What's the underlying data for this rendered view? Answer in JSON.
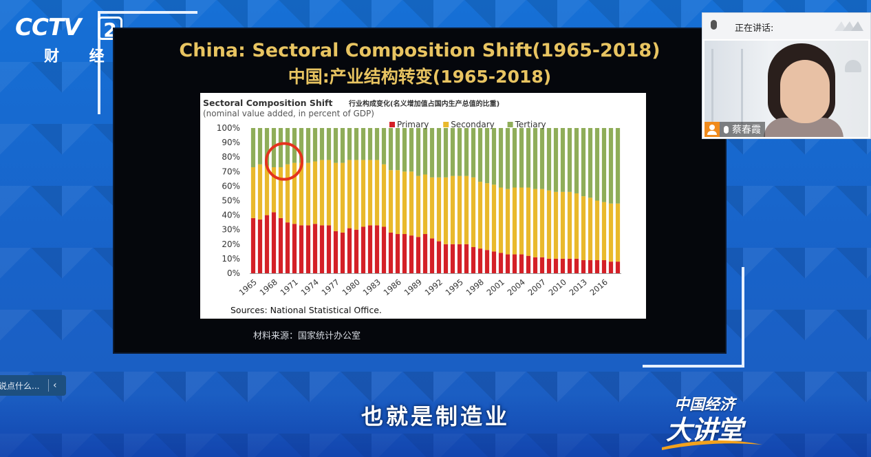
{
  "broadcast": {
    "channel_logo": "CCTV",
    "channel_number": "2",
    "channel_name": "财 经",
    "subtitle": "也就是制造业",
    "program_brand_top": "中国经济",
    "program_brand_bottom": "大讲堂"
  },
  "slide": {
    "title_en": "China: Sectoral Composition Shift(1965-2018)",
    "title_zh": "中国:产业结构转变(1965-2018)",
    "chart_title": "Sectoral Composition Shift",
    "chart_title_zh": "行业构成变化(名义增加值占国内生产总值的比重)",
    "chart_subtitle": "(nominal value added, in percent of GDP)",
    "source": "Sources: National Statistical Office.",
    "caption": "材料来源：国家统计办公室"
  },
  "webcam": {
    "status": "正在讲话:",
    "speaker_name": "蔡春霞",
    "icons": [
      "microphone-icon",
      "user-icon"
    ]
  },
  "comment_box": {
    "placeholder": "说点什么...",
    "collapse_icon": "chevron-left-icon"
  },
  "colors": {
    "primary": "#d42027",
    "secondary": "#e9b92c",
    "tertiary": "#8fad59",
    "slide_title": "#e8c461",
    "highlight_circle": "#e4331d"
  },
  "chart_data": {
    "type": "bar",
    "stacked": true,
    "x": [
      1965,
      1966,
      1967,
      1968,
      1969,
      1970,
      1971,
      1972,
      1973,
      1974,
      1975,
      1976,
      1977,
      1978,
      1979,
      1980,
      1981,
      1982,
      1983,
      1984,
      1985,
      1986,
      1987,
      1988,
      1989,
      1990,
      1991,
      1992,
      1993,
      1994,
      1995,
      1996,
      1997,
      1998,
      1999,
      2000,
      2001,
      2002,
      2003,
      2004,
      2005,
      2006,
      2007,
      2008,
      2009,
      2010,
      2011,
      2012,
      2013,
      2014,
      2015,
      2016,
      2017,
      2018
    ],
    "x_tick_labels": [
      "1965",
      "1968",
      "1971",
      "1974",
      "1977",
      "1980",
      "1983",
      "1986",
      "1989",
      "1992",
      "1995",
      "1998",
      "2001",
      "2004",
      "2007",
      "2010",
      "2013",
      "2016"
    ],
    "series": [
      {
        "name": "Primary",
        "values": [
          38,
          37,
          40,
          42,
          38,
          35,
          34,
          33,
          33,
          34,
          33,
          33,
          29,
          28,
          31,
          30,
          32,
          33,
          33,
          32,
          28,
          27,
          27,
          26,
          25,
          27,
          24,
          22,
          20,
          20,
          20,
          20,
          18,
          17,
          16,
          15,
          14,
          13,
          13,
          13,
          12,
          11,
          11,
          10,
          10,
          10,
          10,
          10,
          9,
          9,
          9,
          9,
          8,
          8
        ]
      },
      {
        "name": "Secondary",
        "values": [
          35,
          38,
          34,
          31,
          35,
          40,
          42,
          43,
          43,
          43,
          45,
          45,
          47,
          48,
          47,
          48,
          46,
          45,
          45,
          43,
          43,
          44,
          43,
          44,
          42,
          41,
          42,
          44,
          46,
          47,
          47,
          47,
          48,
          46,
          46,
          46,
          45,
          45,
          46,
          46,
          47,
          47,
          47,
          47,
          46,
          46,
          46,
          45,
          44,
          43,
          41,
          40,
          40,
          40
        ]
      },
      {
        "name": "Tertiary",
        "values": [
          27,
          25,
          26,
          27,
          27,
          25,
          24,
          24,
          24,
          23,
          22,
          22,
          24,
          24,
          22,
          22,
          22,
          22,
          22,
          25,
          29,
          29,
          30,
          30,
          33,
          32,
          34,
          34,
          34,
          33,
          33,
          33,
          34,
          37,
          38,
          39,
          41,
          42,
          41,
          41,
          41,
          42,
          42,
          43,
          44,
          44,
          44,
          45,
          47,
          48,
          50,
          51,
          52,
          52
        ]
      }
    ],
    "legend": [
      "Primary",
      "Secondary",
      "Tertiary"
    ],
    "legend_position": "top",
    "y_tick_labels": [
      "0%",
      "10%",
      "20%",
      "30%",
      "40%",
      "50%",
      "60%",
      "70%",
      "80%",
      "90%",
      "100%"
    ],
    "ylim": [
      0,
      100
    ],
    "grid": false,
    "annotation": "red circle highlighting the 1968-1971 bars"
  }
}
